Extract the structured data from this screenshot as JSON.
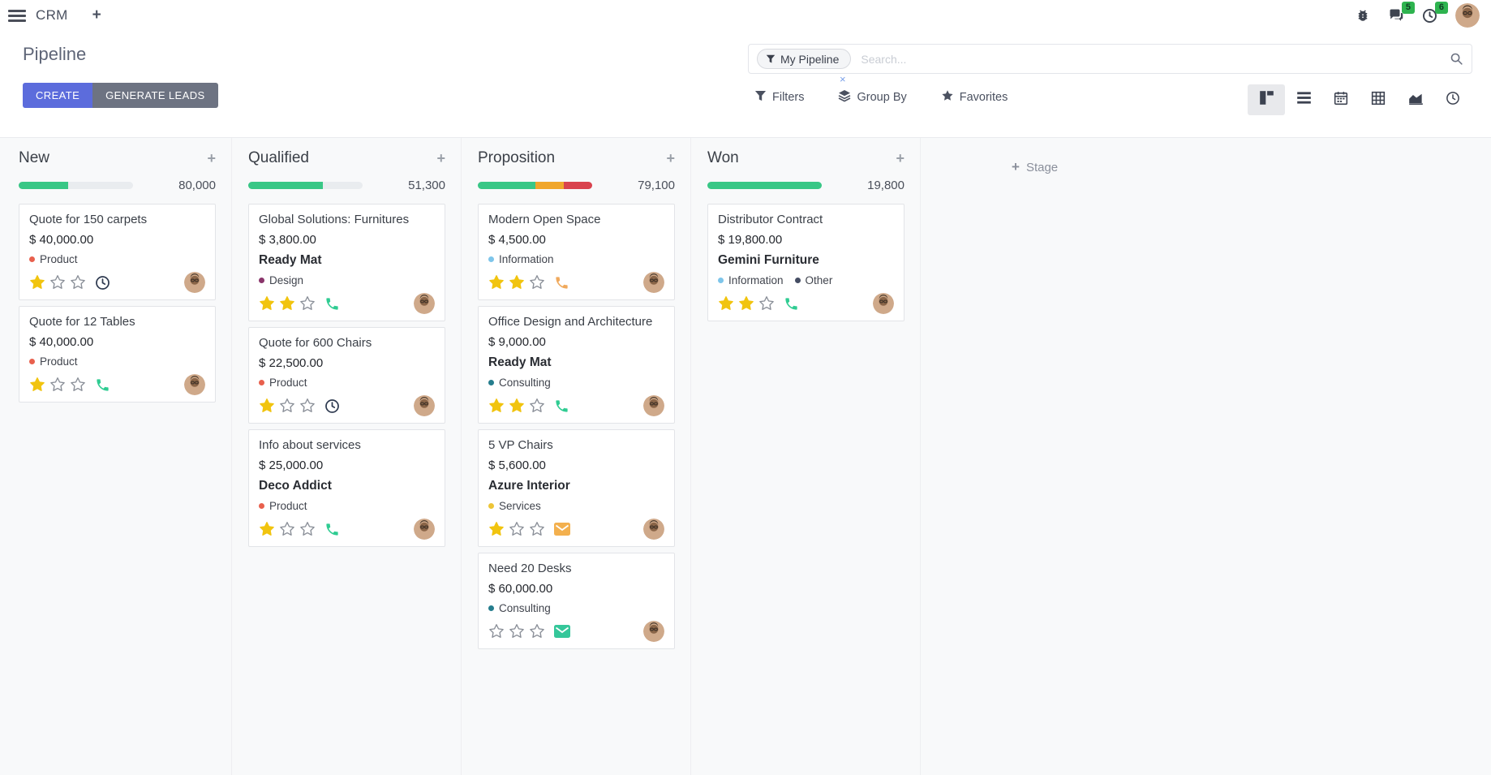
{
  "navbar": {
    "app_name": "CRM",
    "messages_badge": "5",
    "activities_badge": "6"
  },
  "control_panel": {
    "title": "Pipeline",
    "create_label": "CREATE",
    "generate_leads_label": "GENERATE LEADS",
    "search": {
      "facet_label": "My Pipeline",
      "placeholder": "Search...",
      "facet_remove": "×"
    },
    "menus": [
      {
        "id": "filters",
        "icon": "filter-icon",
        "label": "Filters"
      },
      {
        "id": "group-by",
        "icon": "layers-icon",
        "label": "Group By"
      },
      {
        "id": "favorites",
        "icon": "star-icon",
        "label": "Favorites"
      }
    ],
    "view_switcher": [
      {
        "id": "kanban",
        "icon": "kanban-view-icon",
        "active": true
      },
      {
        "id": "list",
        "icon": "list-view-icon",
        "active": false
      },
      {
        "id": "calendar",
        "icon": "calendar-view-icon",
        "active": false
      },
      {
        "id": "pivot",
        "icon": "pivot-view-icon",
        "active": false
      },
      {
        "id": "graph",
        "icon": "graph-view-icon",
        "active": false
      },
      {
        "id": "activity",
        "icon": "activity-view-icon",
        "active": false
      }
    ]
  },
  "colors": {
    "green": "#39c786",
    "orange": "#f0a62b",
    "red": "#d9434e",
    "star_gold": "#f1c40f",
    "create_button": "#5c6cdc",
    "generate_button": "#6d7382",
    "badge_green": "#2eb34f"
  },
  "kanban": {
    "add_stage_label": "Stage",
    "columns": [
      {
        "title": "New",
        "total": "80,000",
        "progress": [
          {
            "color": "#39c786",
            "pct": 43
          }
        ],
        "cards": [
          {
            "title": "Quote for 150 carpets",
            "amount": "$ 40,000.00",
            "partner": "",
            "tags": [
              {
                "label": "Product",
                "color": "#e8604d"
              }
            ],
            "stars": 1,
            "activity": {
              "icon": "clock-icon",
              "color": "#2e3a50"
            }
          },
          {
            "title": "Quote for 12 Tables",
            "amount": "$ 40,000.00",
            "partner": "",
            "tags": [
              {
                "label": "Product",
                "color": "#e8604d"
              }
            ],
            "stars": 1,
            "activity": {
              "icon": "phone-icon",
              "color": "#2fcc92"
            }
          }
        ]
      },
      {
        "title": "Qualified",
        "total": "51,300",
        "progress": [
          {
            "color": "#39c786",
            "pct": 65
          }
        ],
        "cards": [
          {
            "title": "Global Solutions: Furnitures",
            "amount": "$ 3,800.00",
            "partner": "Ready Mat",
            "tags": [
              {
                "label": "Design",
                "color": "#8a356b"
              }
            ],
            "stars": 2,
            "activity": {
              "icon": "phone-icon",
              "color": "#2fcc92"
            }
          },
          {
            "title": "Quote for 600 Chairs",
            "amount": "$ 22,500.00",
            "partner": "",
            "tags": [
              {
                "label": "Product",
                "color": "#e8604d"
              }
            ],
            "stars": 1,
            "activity": {
              "icon": "clock-icon",
              "color": "#2e3a50"
            }
          },
          {
            "title": "Info about services",
            "amount": "$ 25,000.00",
            "partner": "Deco Addict",
            "tags": [
              {
                "label": "Product",
                "color": "#e8604d"
              }
            ],
            "stars": 1,
            "activity": {
              "icon": "phone-icon",
              "color": "#2fcc92"
            }
          }
        ]
      },
      {
        "title": "Proposition",
        "total": "79,100",
        "progress": [
          {
            "color": "#39c786",
            "pct": 50
          },
          {
            "color": "#f0a62b",
            "pct": 25
          },
          {
            "color": "#d9434e",
            "pct": 25
          }
        ],
        "cards": [
          {
            "title": "Modern Open Space",
            "amount": "$ 4,500.00",
            "partner": "",
            "tags": [
              {
                "label": "Information",
                "color": "#7ec5ea"
              }
            ],
            "stars": 2,
            "activity": {
              "icon": "phone-icon",
              "color": "#f0a95c"
            }
          },
          {
            "title": "Office Design and Architecture",
            "amount": "$ 9,000.00",
            "partner": "Ready Mat",
            "tags": [
              {
                "label": "Consulting",
                "color": "#257d8d"
              }
            ],
            "stars": 2,
            "activity": {
              "icon": "phone-icon",
              "color": "#2fcc92"
            }
          },
          {
            "title": "5 VP Chairs",
            "amount": "$ 5,600.00",
            "partner": "Azure Interior",
            "tags": [
              {
                "label": "Services",
                "color": "#edc537"
              }
            ],
            "stars": 1,
            "activity": {
              "icon": "envelope-icon",
              "color": "#f3b04e"
            }
          },
          {
            "title": "Need 20 Desks",
            "amount": "$ 60,000.00",
            "partner": "",
            "tags": [
              {
                "label": "Consulting",
                "color": "#257d8d"
              }
            ],
            "stars": 0,
            "activity": {
              "icon": "envelope-icon",
              "color": "#35c79a"
            }
          }
        ]
      },
      {
        "title": "Won",
        "total": "19,800",
        "progress": [
          {
            "color": "#39c786",
            "pct": 100
          }
        ],
        "cards": [
          {
            "title": "Distributor Contract",
            "amount": "$ 19,800.00",
            "partner": "Gemini Furniture",
            "tags": [
              {
                "label": "Information",
                "color": "#7ec5ea"
              },
              {
                "label": "Other",
                "color": "#454d63"
              }
            ],
            "stars": 2,
            "activity": {
              "icon": "phone-icon",
              "color": "#2fcc92"
            }
          }
        ]
      }
    ]
  }
}
